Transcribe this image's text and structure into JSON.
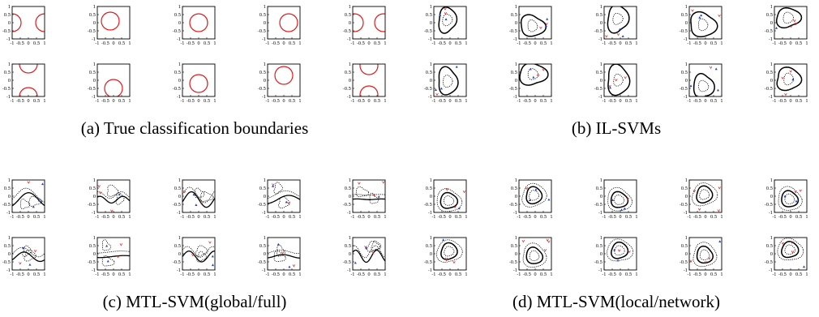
{
  "panels": [
    {
      "id": "a",
      "caption": "(a) True classification boundaries"
    },
    {
      "id": "b",
      "caption": "(b) IL-SVMs"
    },
    {
      "id": "c",
      "caption": "(c) MTL-SVM(global/full)"
    },
    {
      "id": "d",
      "caption": "(d) MTL-SVM(local/network)"
    }
  ],
  "axis": {
    "x_ticks": [
      "-1",
      "-0.5",
      "0",
      "0.5",
      "1"
    ],
    "y_ticks": [
      "1",
      "0.5",
      "0",
      "-0.5",
      "-1"
    ]
  },
  "colors": {
    "true_boundary": "#e41a1c",
    "learned_boundary": "#000000",
    "positive_marker": "#1f3fd1",
    "negative_marker": "#e41a1c"
  },
  "true_circles": [
    [
      {
        "cx": -1.0,
        "cy": 0.0
      },
      {
        "cx": 1.0,
        "cy": 0.0
      }
    ],
    [
      {
        "cx": -0.2,
        "cy": 0.1
      }
    ],
    [
      {
        "cx": 0.0,
        "cy": 0.0
      }
    ],
    [
      {
        "cx": 0.3,
        "cy": 0.0
      }
    ],
    [
      {
        "cx": -0.9,
        "cy": 0.0
      },
      {
        "cx": 0.9,
        "cy": 0.0
      }
    ],
    [
      {
        "cx": 0.0,
        "cy": 1.0
      },
      {
        "cx": 0.0,
        "cy": -1.0
      }
    ],
    [
      {
        "cx": 0.0,
        "cy": -0.5
      }
    ],
    [
      {
        "cx": 0.0,
        "cy": -0.2
      }
    ],
    [
      {
        "cx": 0.0,
        "cy": 0.3
      }
    ],
    [
      {
        "cx": 0.0,
        "cy": 0.9
      },
      {
        "cx": 0.0,
        "cy": -0.9
      }
    ]
  ],
  "true_radius": 0.55
}
